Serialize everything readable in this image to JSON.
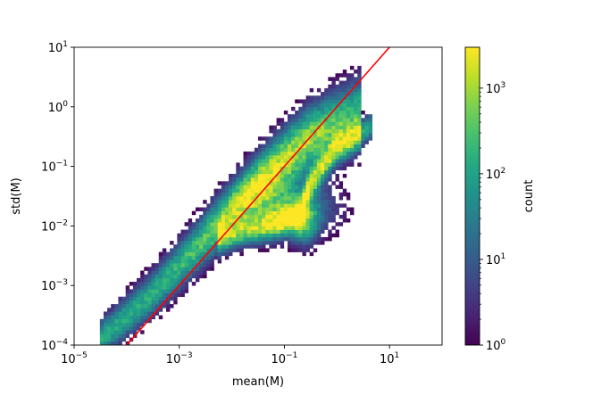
{
  "chart_data": {
    "type": "heatmap",
    "subtype": "2d-histogram",
    "xlabel": "mean(M)",
    "ylabel": "std(M)",
    "xscale": "log",
    "yscale": "log",
    "xlim": [
      1e-05,
      100
    ],
    "ylim": [
      0.0001,
      10
    ],
    "x_ticks": [
      {
        "base": "10",
        "exp": "−5",
        "value": 1e-05
      },
      {
        "base": "10",
        "exp": "−3",
        "value": 0.001
      },
      {
        "base": "10",
        "exp": "−1",
        "value": 0.1
      },
      {
        "base": "10",
        "exp": "1",
        "value": 10
      }
    ],
    "y_ticks": [
      {
        "base": "10",
        "exp": "−4",
        "value": 0.0001
      },
      {
        "base": "10",
        "exp": "−3",
        "value": 0.001
      },
      {
        "base": "10",
        "exp": "−2",
        "value": 0.01
      },
      {
        "base": "10",
        "exp": "−1",
        "value": 0.1
      },
      {
        "base": "10",
        "exp": "0",
        "value": 1
      },
      {
        "base": "10",
        "exp": "1",
        "value": 10
      }
    ],
    "colorbar": {
      "label": "count",
      "scale": "log",
      "colormap": "viridis",
      "range": [
        1,
        3000
      ],
      "ticks": [
        {
          "base": "10",
          "exp": "0",
          "value": 1
        },
        {
          "base": "10",
          "exp": "1",
          "value": 10
        },
        {
          "base": "10",
          "exp": "2",
          "value": 100
        },
        {
          "base": "10",
          "exp": "3",
          "value": 1000
        }
      ]
    },
    "density_structure": {
      "upper_branch_ridge": [
        [
          3e-05,
          0.00012
        ],
        [
          0.0003,
          0.0007
        ],
        [
          0.003,
          0.006
        ],
        [
          0.03,
          0.05
        ],
        [
          0.3,
          0.3
        ],
        [
          3,
          0.8
        ]
      ],
      "lower_branch_ridge": [
        [
          0.005,
          0.006
        ],
        [
          0.05,
          0.01
        ],
        [
          0.2,
          0.015
        ],
        [
          0.3,
          0.05
        ],
        [
          1,
          0.2
        ],
        [
          5,
          0.5
        ]
      ],
      "peak": {
        "x": 0.25,
        "y": 0.011,
        "count": 3000
      }
    },
    "reference_line": {
      "color": "#ff0000",
      "equation": "y = x",
      "points": [
        [
          0.0001,
          0.0001
        ],
        [
          10,
          10
        ]
      ]
    }
  }
}
